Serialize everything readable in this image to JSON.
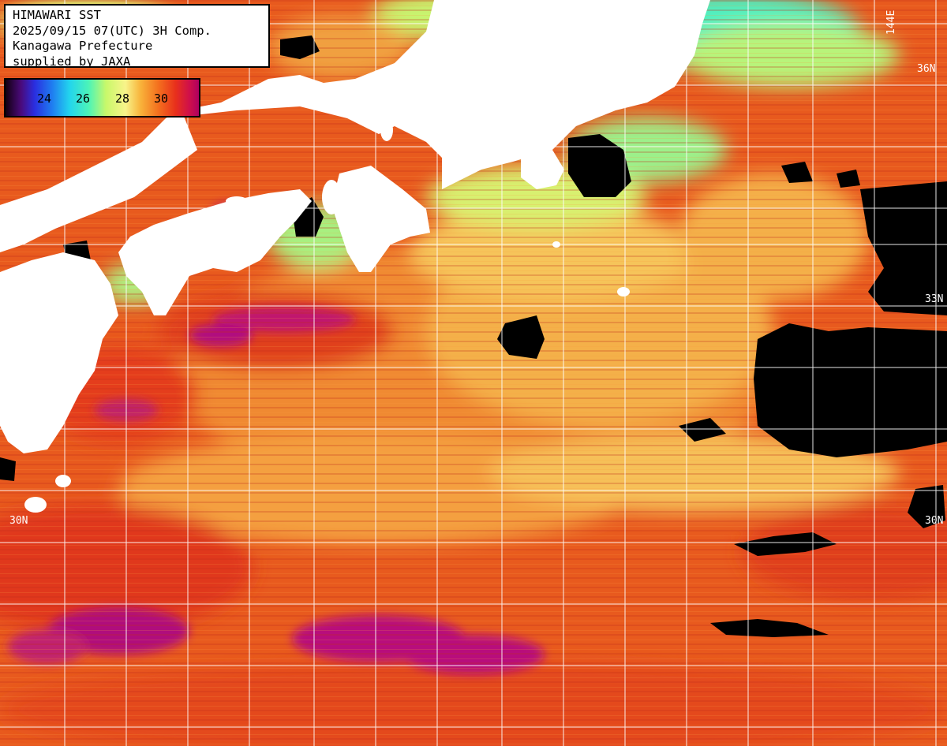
{
  "header": {
    "title": "HIMAWARI SST",
    "timestamp": "2025/09/15 07(UTC) 3H Comp.",
    "region": "Kanagawa Prefecture",
    "credit": "supplied by JAXA"
  },
  "colorbar": {
    "ticks": [
      "24",
      "26",
      "28",
      "30"
    ]
  },
  "grid_labels": {
    "lat_36": "36N",
    "lat_33": "33N",
    "lat_30_left": "30N",
    "lat_30_right": "30N",
    "lon_144": "144E"
  },
  "colors": {
    "land": "#ffffff",
    "cloud": "#000000",
    "grid": "#ffffff",
    "sst_warm": "#e8501a",
    "sst_hot": "#d01a40",
    "sst_very_hot": "#b0107a",
    "sst_mild": "#f8d860",
    "sst_cool": "#4cf0b0",
    "sst_cold": "#22d0e8"
  }
}
